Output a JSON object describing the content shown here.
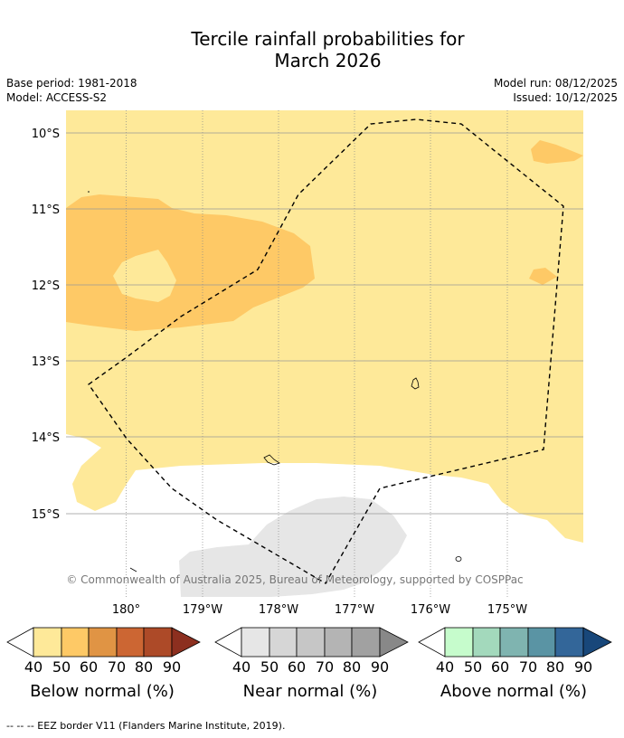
{
  "title_line1": "Tercile rainfall probabilities for",
  "title_line2": "March 2026",
  "meta_left": {
    "base_period": "Base period: 1981-2018",
    "model": "Model: ACCESS-S2"
  },
  "meta_right": {
    "model_run": "Model run: 08/12/2025",
    "issued": "Issued: 10/12/2025"
  },
  "map": {
    "lat_labels": [
      "10°S",
      "11°S",
      "12°S",
      "13°S",
      "14°S",
      "15°S"
    ],
    "lon_labels": [
      "180°",
      "179°W",
      "178°W",
      "177°W",
      "176°W",
      "175°W"
    ],
    "copyright": "© Commonwealth of Australia 2025, Bureau of Meteorology, supported by COSPPac"
  },
  "colorbars": [
    {
      "title": "Below normal (%)",
      "ticks": [
        "40",
        "50",
        "60",
        "70",
        "80",
        "90"
      ],
      "colors": [
        "#fee999",
        "#fec966",
        "#e09444",
        "#cc6633",
        "#ad4a28",
        "#8c2f1f"
      ]
    },
    {
      "title": "Near normal (%)",
      "ticks": [
        "40",
        "50",
        "60",
        "70",
        "80",
        "90"
      ],
      "colors": [
        "#e6e6e6",
        "#d6d6d6",
        "#c6c6c6",
        "#b4b4b4",
        "#a1a1a1",
        "#888888"
      ]
    },
    {
      "title": "Above normal (%)",
      "ticks": [
        "40",
        "50",
        "60",
        "70",
        "80",
        "90"
      ],
      "colors": [
        "#c6fccc",
        "#a3d9bc",
        "#7fb4b0",
        "#5a94a4",
        "#336699",
        "#18477a"
      ]
    }
  ],
  "legend": {
    "eez_text": "--  --  -- EEZ border V11 (Flanders Marine Institute, 2019)."
  }
}
